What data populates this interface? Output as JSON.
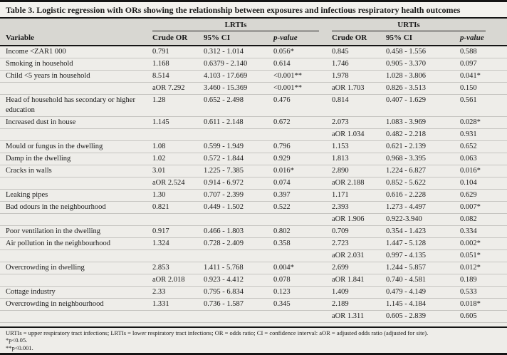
{
  "title": "Table 3. Logistic regression with ORs showing the relationship between exposures and infectious respiratory health outcomes",
  "table": {
    "group_headers": [
      "LRTIs",
      "URTIs"
    ],
    "col_headers": {
      "variable": "Variable",
      "crude_or": "Crude OR",
      "ci": "95% CI",
      "p_value": "p-value"
    },
    "rows": [
      {
        "lines": [
          {
            "variable": "Income <ZAR1 000",
            "lrti": [
              "0.791",
              "0.312 - 1.014",
              "0.056*"
            ],
            "urti": [
              "0.845",
              "0.458 - 1.556",
              "0.588"
            ]
          }
        ]
      },
      {
        "lines": [
          {
            "variable": "Smoking in household",
            "lrti": [
              "1.168",
              "0.6379 - 2.140",
              "0.614"
            ],
            "urti": [
              "1.746",
              "0.905 - 3.370",
              "0.097"
            ]
          }
        ]
      },
      {
        "lines": [
          {
            "variable": "Child <5 years in household",
            "lrti": [
              "8.514",
              "4.103 - 17.669",
              "<0.001**"
            ],
            "urti": [
              "1.978",
              "1.028 - 3.806",
              "0.041*"
            ]
          },
          {
            "variable": "",
            "lrti": [
              "aOR 7.292",
              "3.460 - 15.369",
              "<0.001**"
            ],
            "urti": [
              "aOR 1.703",
              "0.826 - 3.513",
              "0.150"
            ]
          }
        ]
      },
      {
        "lines": [
          {
            "variable": "Head of household has secondary or higher education",
            "lrti": [
              "1.28",
              "0.652 - 2.498",
              "0.476"
            ],
            "urti": [
              "0.814",
              "0.407 - 1.629",
              "0.561"
            ]
          }
        ]
      },
      {
        "lines": [
          {
            "variable": "Increased dust in house",
            "lrti": [
              "1.145",
              "0.611 - 2.148",
              "0.672"
            ],
            "urti": [
              "2.073",
              "1.083 - 3.969",
              "0.028*"
            ]
          },
          {
            "variable": "",
            "lrti": [
              "",
              "",
              ""
            ],
            "urti": [
              "aOR 1.034",
              "0.482 - 2.218",
              "0.931"
            ]
          }
        ]
      },
      {
        "lines": [
          {
            "variable": "Mould or fungus in the dwelling",
            "lrti": [
              "1.08",
              "0.599 - 1.949",
              "0.796"
            ],
            "urti": [
              "1.153",
              "0.621 - 2.139",
              "0.652"
            ]
          }
        ]
      },
      {
        "lines": [
          {
            "variable": "Damp in the dwelling",
            "lrti": [
              "1.02",
              "0.572 - 1.844",
              "0.929"
            ],
            "urti": [
              "1.813",
              "0.968 - 3.395",
              "0.063"
            ]
          }
        ]
      },
      {
        "lines": [
          {
            "variable": "Cracks in walls",
            "lrti": [
              "3.01",
              "1.225 - 7.385",
              "0.016*"
            ],
            "urti": [
              "2.890",
              "1.224 - 6.827",
              "0.016*"
            ]
          },
          {
            "variable": "",
            "lrti": [
              "aOR 2.524",
              "0.914 - 6.972",
              "0.074"
            ],
            "urti": [
              "aOR 2.188",
              "0.852 - 5.622",
              "0.104"
            ]
          }
        ]
      },
      {
        "lines": [
          {
            "variable": "Leaking pipes",
            "lrti": [
              "1.30",
              "0.707 - 2.399",
              "0.397"
            ],
            "urti": [
              "1.171",
              "0.616 - 2.228",
              "0.629"
            ]
          }
        ]
      },
      {
        "lines": [
          {
            "variable": "Bad odours in the neighbourhood",
            "lrti": [
              "0.821",
              "0.449 - 1.502",
              "0.522"
            ],
            "urti": [
              "2.393",
              "1.273 - 4.497",
              "0.007*"
            ]
          },
          {
            "variable": "",
            "lrti": [
              "",
              "",
              ""
            ],
            "urti": [
              "aOR 1.906",
              "0.922-3.940",
              "0.082"
            ]
          }
        ]
      },
      {
        "lines": [
          {
            "variable": "Poor ventilation in the dwelling",
            "lrti": [
              "0.917",
              "0.466 - 1.803",
              "0.802"
            ],
            "urti": [
              "0.709",
              "0.354 - 1.423",
              "0.334"
            ]
          }
        ]
      },
      {
        "lines": [
          {
            "variable": "Air pollution in the neighbourhood",
            "lrti": [
              "1.324",
              "0.728 - 2.409",
              "0.358"
            ],
            "urti": [
              "2.723",
              "1.447 - 5.128",
              "0.002*"
            ]
          },
          {
            "variable": "",
            "lrti": [
              "",
              "",
              ""
            ],
            "urti": [
              "aOR 2.031",
              "0.997 - 4.135",
              "0.051*"
            ]
          }
        ]
      },
      {
        "lines": [
          {
            "variable": "Overcrowding in dwelling",
            "lrti": [
              "2.853",
              "1.411 - 5.768",
              "0.004*"
            ],
            "urti": [
              "2.699",
              "1.244 - 5.857",
              "0.012*"
            ]
          },
          {
            "variable": "",
            "lrti": [
              "aOR 2.018",
              "0.923 - 4.412",
              "0.078"
            ],
            "urti": [
              "aOR 1.841",
              "0.740 - 4.581",
              "0.189"
            ]
          }
        ]
      },
      {
        "lines": [
          {
            "variable": "Cottage industry",
            "lrti": [
              "2.33",
              "0.795 - 6.834",
              "0.123"
            ],
            "urti": [
              "1.409",
              "0.479 - 4.149",
              "0.533"
            ]
          }
        ]
      },
      {
        "lines": [
          {
            "variable": "Overcrowding in neighbourhood",
            "lrti": [
              "1.331",
              "0.736 - 1.587",
              "0.345"
            ],
            "urti": [
              "2.189",
              "1.145 - 4.184",
              "0.018*"
            ]
          },
          {
            "variable": "",
            "lrti": [
              "",
              "",
              ""
            ],
            "urti": [
              "aOR 1.311",
              "0.605 - 2.839",
              "0.605"
            ]
          }
        ]
      }
    ]
  },
  "footnotes": [
    "URTIs = upper respiratory tract infections; LRTIs = lower respiratory tract infections; OR = odds ratio; CI = confidence interval: aOR = adjusted odds ratio (adjusted for site).",
    "*p<0.05.",
    "**p<0.001."
  ]
}
